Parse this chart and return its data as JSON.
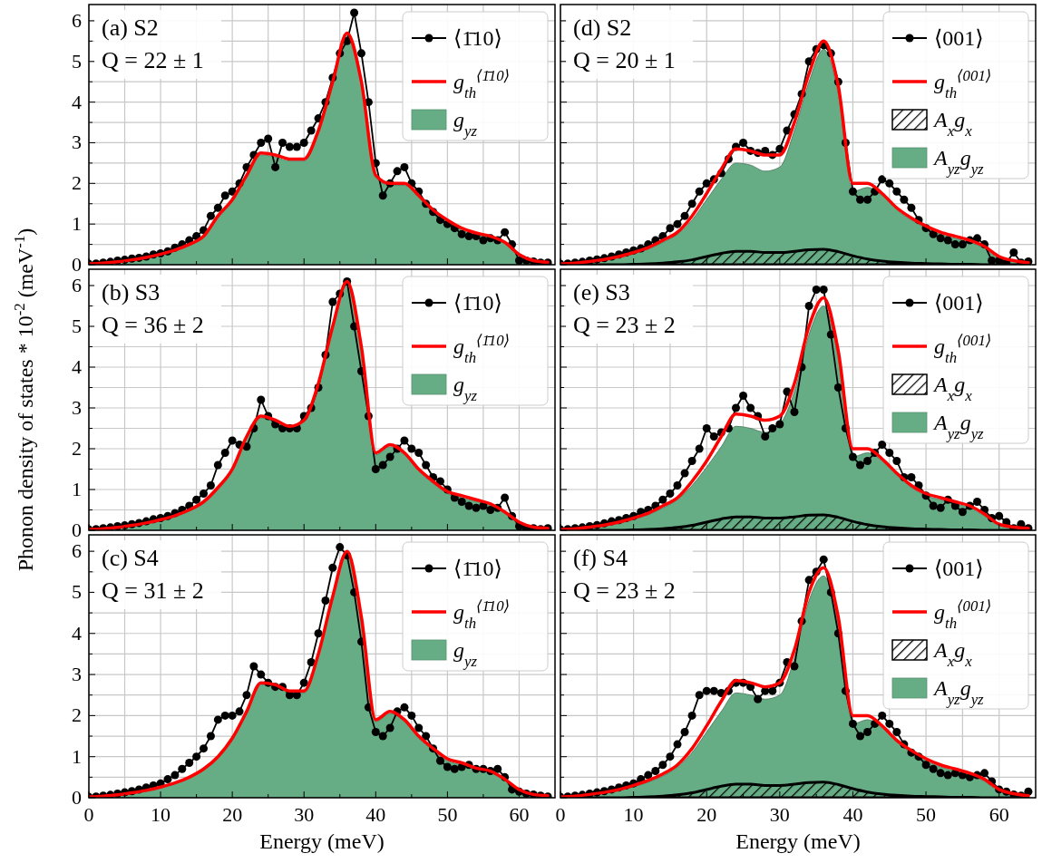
{
  "chart_data": [
    {
      "type": "line",
      "annotations": [
        "(a) S2",
        "Q = 22 ± 1"
      ],
      "tick_labels": "y",
      "xlim": [
        0,
        65
      ],
      "ylim": [
        0,
        6.4
      ],
      "xticks": [
        0,
        {
          "value": 5,
          "label": null
        },
        10,
        {
          "value": 15,
          "label": null
        },
        20,
        {
          "value": 25,
          "label": null
        },
        30,
        {
          "value": 35,
          "label": null
        },
        40,
        {
          "value": 45,
          "label": null
        },
        50,
        {
          "value": 55,
          "label": null
        },
        60
      ],
      "yticks": [
        0,
        {
          "value": 0.5,
          "label": null
        },
        1,
        {
          "value": 1.5,
          "label": null
        },
        2,
        {
          "value": 2.5,
          "label": null
        },
        3,
        {
          "value": 3.5,
          "label": null
        },
        4,
        {
          "value": 4.5,
          "label": null
        },
        5,
        {
          "value": 5.5,
          "label": null
        },
        6
      ],
      "grid": true,
      "legend": "top right",
      "x": [
        0,
        1,
        2,
        3,
        4,
        5,
        6,
        7,
        8,
        9,
        10,
        11,
        12,
        13,
        14,
        15,
        16,
        17,
        18,
        19,
        20,
        21,
        22,
        23,
        24,
        25,
        26,
        27,
        28,
        29,
        30,
        31,
        32,
        33,
        34,
        35,
        36,
        37,
        38,
        39,
        40,
        41,
        42,
        43,
        44,
        45,
        46,
        47,
        48,
        49,
        50,
        51,
        52,
        53,
        54,
        55,
        56,
        57,
        58,
        59,
        60,
        61,
        62,
        63,
        64
      ],
      "series": [
        {
          "name": "⟨1̄10⟩",
          "type": "line",
          "marker": "circle",
          "color": "#000000",
          "values": [
            0.02,
            0.03,
            0.05,
            0.07,
            0.1,
            0.12,
            0.15,
            0.17,
            0.2,
            0.25,
            0.28,
            0.33,
            0.42,
            0.5,
            0.6,
            0.7,
            0.85,
            1.2,
            1.4,
            1.7,
            1.8,
            2.0,
            2.4,
            2.7,
            3.0,
            3.1,
            2.4,
            3.0,
            2.9,
            2.9,
            3.0,
            3.3,
            3.6,
            4.0,
            4.6,
            5.2,
            5.5,
            6.2,
            5.2,
            4.0,
            2.5,
            1.7,
            2.0,
            2.3,
            2.4,
            2.0,
            1.8,
            1.5,
            1.3,
            1.1,
            1.0,
            0.9,
            0.75,
            0.7,
            0.7,
            0.6,
            0.65,
            0.6,
            0.8,
            0.5,
            0.1,
            0.1,
            0.08,
            0.05,
            0.05
          ]
        },
        {
          "name": "g$_{th}$$^{⟨1̄10⟩}$",
          "type": "line",
          "marker": "none",
          "color": "#ff0000",
          "x": [
            0,
            2,
            4,
            6,
            8,
            10,
            12,
            14,
            16,
            18,
            20,
            22,
            24,
            26,
            28,
            30,
            32,
            34,
            36,
            38,
            40,
            42,
            44,
            46,
            48,
            50,
            52,
            54,
            56,
            58,
            60,
            62,
            64
          ],
          "values": [
            0.02,
            0.04,
            0.07,
            0.12,
            0.18,
            0.26,
            0.36,
            0.5,
            0.7,
            1.2,
            1.6,
            2.2,
            2.75,
            2.7,
            2.6,
            2.6,
            3.3,
            4.5,
            5.7,
            4.5,
            2.2,
            2.0,
            2.0,
            1.7,
            1.35,
            1.1,
            0.9,
            0.78,
            0.7,
            0.55,
            0.25,
            0.1,
            0.06
          ]
        },
        {
          "name": "g$_{yz}$",
          "type": "area",
          "color": "#66ad85",
          "x": [
            0,
            2,
            4,
            6,
            8,
            10,
            12,
            14,
            16,
            18,
            20,
            22,
            24,
            26,
            28,
            30,
            32,
            34,
            36,
            38,
            40,
            42,
            44,
            46,
            48,
            50,
            52,
            54,
            56,
            58,
            60,
            62,
            64
          ],
          "values": [
            0.02,
            0.04,
            0.07,
            0.12,
            0.18,
            0.25,
            0.35,
            0.48,
            0.67,
            1.15,
            1.55,
            2.15,
            2.7,
            2.65,
            2.55,
            2.55,
            3.25,
            4.45,
            5.65,
            4.45,
            2.15,
            1.95,
            1.95,
            1.65,
            1.3,
            1.05,
            0.85,
            0.74,
            0.66,
            0.52,
            0.23,
            0.09,
            0.05
          ]
        }
      ]
    },
    {
      "type": "line",
      "annotations": [
        "(b) S3",
        "Q = 36 ± 2"
      ],
      "ylabel": "Phonon  density  of  states * 10$^{-2}$ (meV$^{-1}$)",
      "tick_labels": "y",
      "xlim": [
        0,
        65
      ],
      "ylim": [
        0,
        6.4
      ],
      "xticks": [
        0,
        {
          "value": 5,
          "label": null
        },
        10,
        {
          "value": 15,
          "label": null
        },
        20,
        {
          "value": 25,
          "label": null
        },
        30,
        {
          "value": 35,
          "label": null
        },
        40,
        {
          "value": 45,
          "label": null
        },
        50,
        {
          "value": 55,
          "label": null
        },
        60
      ],
      "yticks": [
        0,
        {
          "value": 0.5,
          "label": null
        },
        1,
        {
          "value": 1.5,
          "label": null
        },
        2,
        {
          "value": 2.5,
          "label": null
        },
        3,
        {
          "value": 3.5,
          "label": null
        },
        4,
        {
          "value": 4.5,
          "label": null
        },
        5,
        {
          "value": 5.5,
          "label": null
        },
        6
      ],
      "grid": true,
      "legend": "top right",
      "x": [
        0,
        1,
        2,
        3,
        4,
        5,
        6,
        7,
        8,
        9,
        10,
        11,
        12,
        13,
        14,
        15,
        16,
        17,
        18,
        19,
        20,
        21,
        22,
        23,
        24,
        25,
        26,
        27,
        28,
        29,
        30,
        31,
        32,
        33,
        34,
        35,
        36,
        37,
        38,
        39,
        40,
        41,
        42,
        43,
        44,
        45,
        46,
        47,
        48,
        49,
        50,
        51,
        52,
        53,
        54,
        55,
        56,
        57,
        58,
        59,
        60,
        61,
        62,
        63,
        64
      ],
      "series": [
        {
          "name": "⟨1̄10⟩",
          "type": "line",
          "marker": "circle",
          "color": "#000000",
          "values": [
            0.02,
            0.03,
            0.05,
            0.07,
            0.1,
            0.12,
            0.15,
            0.18,
            0.22,
            0.27,
            0.3,
            0.35,
            0.42,
            0.5,
            0.6,
            0.75,
            0.9,
            1.1,
            1.6,
            1.9,
            2.2,
            2.1,
            2.05,
            2.5,
            3.2,
            2.8,
            2.6,
            2.5,
            2.5,
            2.5,
            2.8,
            3.0,
            3.5,
            4.3,
            5.6,
            5.8,
            6.1,
            5.0,
            3.9,
            2.8,
            1.5,
            1.6,
            1.8,
            2.0,
            2.2,
            2.0,
            1.9,
            1.6,
            1.3,
            1.2,
            1.0,
            0.8,
            0.7,
            0.6,
            0.55,
            0.6,
            0.5,
            0.55,
            0.8,
            0.35,
            0.1,
            0.05,
            0.05,
            0.03,
            0.05
          ]
        },
        {
          "name": "g$_{th}$$^{⟨1̄10⟩}$",
          "type": "line",
          "marker": "none",
          "color": "#ff0000",
          "x": [
            0,
            2,
            4,
            6,
            8,
            10,
            12,
            14,
            16,
            18,
            20,
            22,
            24,
            26,
            28,
            30,
            32,
            34,
            36,
            38,
            40,
            42,
            44,
            46,
            48,
            50,
            52,
            54,
            56,
            58,
            60,
            62,
            64
          ],
          "values": [
            0.02,
            0.04,
            0.07,
            0.12,
            0.18,
            0.26,
            0.36,
            0.5,
            0.7,
            1.05,
            1.5,
            2.3,
            2.8,
            2.7,
            2.55,
            2.7,
            3.6,
            5.0,
            6.1,
            4.5,
            1.9,
            2.1,
            1.9,
            1.5,
            1.2,
            0.95,
            0.85,
            0.75,
            0.65,
            0.45,
            0.2,
            0.08,
            0.05
          ]
        },
        {
          "name": "g$_{yz}$",
          "type": "area",
          "color": "#66ad85",
          "x": [
            0,
            2,
            4,
            6,
            8,
            10,
            12,
            14,
            16,
            18,
            20,
            22,
            24,
            26,
            28,
            30,
            32,
            34,
            36,
            38,
            40,
            42,
            44,
            46,
            48,
            50,
            52,
            54,
            56,
            58,
            60,
            62,
            64
          ],
          "values": [
            0.02,
            0.04,
            0.07,
            0.12,
            0.18,
            0.25,
            0.35,
            0.48,
            0.67,
            1.0,
            1.45,
            2.25,
            2.75,
            2.65,
            2.5,
            2.65,
            3.55,
            4.95,
            6.05,
            4.45,
            1.85,
            2.05,
            1.85,
            1.45,
            1.15,
            0.9,
            0.8,
            0.71,
            0.61,
            0.42,
            0.18,
            0.07,
            0.04
          ]
        }
      ]
    },
    {
      "type": "line",
      "annotations": [
        "(c) S4",
        "Q = 31 ± 2"
      ],
      "xlabel": "Energy (meV)",
      "xlim": [
        0,
        65
      ],
      "ylim": [
        0,
        6.4
      ],
      "xticks": [
        0,
        {
          "value": 5,
          "label": null
        },
        10,
        {
          "value": 15,
          "label": null
        },
        20,
        {
          "value": 25,
          "label": null
        },
        30,
        {
          "value": 35,
          "label": null
        },
        40,
        {
          "value": 45,
          "label": null
        },
        50,
        {
          "value": 55,
          "label": null
        },
        60
      ],
      "yticks": [
        0,
        {
          "value": 0.5,
          "label": null
        },
        1,
        {
          "value": 1.5,
          "label": null
        },
        2,
        {
          "value": 2.5,
          "label": null
        },
        3,
        {
          "value": 3.5,
          "label": null
        },
        4,
        {
          "value": 4.5,
          "label": null
        },
        5,
        {
          "value": 5.5,
          "label": null
        },
        6
      ],
      "grid": true,
      "legend": "top right",
      "x": [
        0,
        1,
        2,
        3,
        4,
        5,
        6,
        7,
        8,
        9,
        10,
        11,
        12,
        13,
        14,
        15,
        16,
        17,
        18,
        19,
        20,
        21,
        22,
        23,
        24,
        25,
        26,
        27,
        28,
        29,
        30,
        31,
        32,
        33,
        34,
        35,
        36,
        37,
        38,
        39,
        40,
        41,
        42,
        43,
        44,
        45,
        46,
        47,
        48,
        49,
        50,
        51,
        52,
        53,
        54,
        55,
        56,
        57,
        58,
        59,
        60,
        61,
        62,
        63,
        64
      ],
      "series": [
        {
          "name": "⟨1̄10⟩",
          "type": "line",
          "marker": "circle",
          "color": "#000000",
          "values": [
            0.02,
            0.03,
            0.05,
            0.07,
            0.1,
            0.13,
            0.16,
            0.2,
            0.25,
            0.3,
            0.35,
            0.45,
            0.55,
            0.7,
            0.85,
            1.0,
            1.2,
            1.5,
            1.9,
            2.0,
            2.0,
            2.1,
            2.5,
            3.2,
            3.0,
            2.8,
            2.7,
            2.7,
            2.5,
            2.5,
            2.8,
            3.3,
            4.0,
            4.8,
            5.6,
            6.1,
            5.9,
            5.0,
            3.8,
            2.2,
            1.6,
            1.5,
            1.7,
            2.1,
            2.2,
            2.0,
            1.7,
            1.5,
            1.2,
            0.9,
            0.75,
            0.7,
            0.75,
            0.8,
            0.7,
            0.7,
            0.65,
            0.7,
            0.5,
            0.2,
            0.15,
            0.1,
            0.08,
            0.05,
            0.03
          ]
        },
        {
          "name": "g$_{th}$$^{⟨1̄10⟩}$",
          "type": "line",
          "marker": "none",
          "color": "#ff0000",
          "x": [
            0,
            2,
            4,
            6,
            8,
            10,
            12,
            14,
            16,
            18,
            20,
            22,
            24,
            26,
            28,
            30,
            32,
            34,
            36,
            38,
            40,
            42,
            44,
            46,
            48,
            50,
            52,
            54,
            56,
            58,
            60,
            62,
            64
          ],
          "values": [
            0.02,
            0.04,
            0.07,
            0.12,
            0.18,
            0.26,
            0.36,
            0.5,
            0.7,
            1.0,
            1.45,
            2.1,
            2.8,
            2.75,
            2.6,
            2.6,
            3.5,
            4.9,
            6.0,
            4.4,
            1.9,
            2.1,
            1.9,
            1.5,
            1.2,
            0.95,
            0.85,
            0.72,
            0.65,
            0.45,
            0.2,
            0.08,
            0.05
          ]
        },
        {
          "name": "g$_{yz}$",
          "type": "area",
          "color": "#66ad85",
          "x": [
            0,
            2,
            4,
            6,
            8,
            10,
            12,
            14,
            16,
            18,
            20,
            22,
            24,
            26,
            28,
            30,
            32,
            34,
            36,
            38,
            40,
            42,
            44,
            46,
            48,
            50,
            52,
            54,
            56,
            58,
            60,
            62,
            64
          ],
          "values": [
            0.02,
            0.04,
            0.07,
            0.12,
            0.18,
            0.25,
            0.35,
            0.48,
            0.67,
            0.96,
            1.4,
            2.05,
            2.75,
            2.7,
            2.55,
            2.55,
            3.45,
            4.85,
            5.95,
            4.35,
            1.85,
            2.05,
            1.85,
            1.45,
            1.15,
            0.9,
            0.8,
            0.68,
            0.61,
            0.42,
            0.18,
            0.07,
            0.04
          ]
        }
      ]
    },
    {
      "type": "line",
      "annotations": [
        "(d) S2",
        "Q = 20 ± 1"
      ],
      "tick_labels": false,
      "xlim": [
        0,
        65
      ],
      "ylim": [
        0,
        6.4
      ],
      "xticks": [
        0,
        {
          "value": 5,
          "label": null
        },
        10,
        {
          "value": 15,
          "label": null
        },
        20,
        {
          "value": 25,
          "label": null
        },
        30,
        {
          "value": 35,
          "label": null
        },
        40,
        {
          "value": 45,
          "label": null
        },
        50,
        {
          "value": 55,
          "label": null
        },
        60
      ],
      "yticks": [
        0,
        {
          "value": 0.5,
          "label": null
        },
        1,
        {
          "value": 1.5,
          "label": null
        },
        2,
        {
          "value": 2.5,
          "label": null
        },
        3,
        {
          "value": 3.5,
          "label": null
        },
        4,
        {
          "value": 4.5,
          "label": null
        },
        5,
        {
          "value": 5.5,
          "label": null
        },
        6
      ],
      "grid": true,
      "legend": "top right",
      "x": [
        0,
        1,
        2,
        3,
        4,
        5,
        6,
        7,
        8,
        9,
        10,
        11,
        12,
        13,
        14,
        15,
        16,
        17,
        18,
        19,
        20,
        21,
        22,
        23,
        24,
        25,
        26,
        27,
        28,
        29,
        30,
        31,
        32,
        33,
        34,
        35,
        36,
        37,
        38,
        39,
        40,
        41,
        42,
        43,
        44,
        45,
        46,
        47,
        48,
        49,
        50,
        51,
        52,
        53,
        54,
        55,
        56,
        57,
        58,
        59,
        60,
        61,
        62,
        63,
        64
      ],
      "series": [
        {
          "name": "⟨001⟩",
          "type": "line",
          "marker": "circle",
          "color": "#000000",
          "values": [
            0.02,
            0.03,
            0.05,
            0.07,
            0.1,
            0.13,
            0.16,
            0.2,
            0.25,
            0.3,
            0.35,
            0.4,
            0.5,
            0.6,
            0.7,
            0.9,
            1.0,
            1.2,
            1.5,
            1.8,
            2.0,
            2.1,
            2.25,
            2.6,
            2.9,
            3.0,
            2.8,
            2.75,
            2.8,
            2.7,
            2.85,
            3.3,
            3.7,
            4.2,
            5.0,
            5.3,
            5.4,
            5.2,
            4.5,
            3.0,
            1.8,
            1.6,
            1.6,
            1.8,
            2.1,
            2.0,
            1.8,
            1.6,
            1.4,
            1.1,
            0.9,
            0.75,
            0.65,
            0.6,
            0.5,
            0.5,
            0.6,
            0.65,
            0.5,
            0.1,
            0.1,
            0.05,
            0.3,
            0.05,
            0.08
          ]
        },
        {
          "name": "g$_{th}$$^{⟨001⟩}$",
          "type": "line",
          "marker": "none",
          "color": "#ff0000",
          "x": [
            0,
            2,
            4,
            6,
            8,
            10,
            12,
            14,
            16,
            18,
            20,
            22,
            24,
            26,
            28,
            30,
            32,
            34,
            36,
            38,
            40,
            42,
            44,
            46,
            48,
            50,
            52,
            54,
            56,
            58,
            60,
            62,
            64
          ],
          "values": [
            0.02,
            0.04,
            0.08,
            0.13,
            0.2,
            0.3,
            0.42,
            0.6,
            0.8,
            1.2,
            1.75,
            2.35,
            2.85,
            2.8,
            2.7,
            2.7,
            3.5,
            4.7,
            5.5,
            4.4,
            2.0,
            2.0,
            1.75,
            1.4,
            1.15,
            0.95,
            0.8,
            0.7,
            0.6,
            0.45,
            0.2,
            0.1,
            0.05
          ]
        },
        {
          "name": "A$_{x}$g$_{x}$",
          "type": "area",
          "color": "#000000",
          "x": [
            0,
            2,
            4,
            6,
            8,
            10,
            12,
            14,
            16,
            18,
            20,
            22,
            24,
            26,
            28,
            30,
            32,
            34,
            36,
            38,
            40,
            42,
            44,
            46,
            48,
            50,
            52,
            54,
            56,
            58,
            60,
            62,
            64
          ],
          "values": [
            0,
            0,
            0,
            0,
            0,
            0.01,
            0.02,
            0.04,
            0.07,
            0.12,
            0.2,
            0.28,
            0.33,
            0.33,
            0.3,
            0.3,
            0.33,
            0.37,
            0.38,
            0.32,
            0.22,
            0.14,
            0.09,
            0.06,
            0.04,
            0.03,
            0.02,
            0.01,
            0.01,
            0,
            0,
            0,
            0
          ]
        },
        {
          "name": "A$_{yz}$g$_{yz}$",
          "type": "area",
          "color": "#66ad85",
          "x": [
            0,
            2,
            4,
            6,
            8,
            10,
            12,
            14,
            16,
            18,
            20,
            22,
            24,
            26,
            28,
            30,
            32,
            34,
            36,
            38,
            40,
            42,
            44,
            46,
            48,
            50,
            52,
            54,
            56,
            58,
            60,
            62,
            64
          ],
          "values": [
            0.02,
            0.04,
            0.07,
            0.12,
            0.18,
            0.27,
            0.38,
            0.55,
            0.75,
            1.1,
            1.6,
            2.1,
            2.5,
            2.45,
            2.3,
            2.4,
            3.3,
            4.5,
            5.3,
            4.2,
            1.8,
            1.9,
            1.7,
            1.35,
            1.1,
            0.9,
            0.75,
            0.65,
            0.55,
            0.4,
            0.15,
            0.08,
            0.05
          ]
        }
      ]
    },
    {
      "type": "line",
      "annotations": [
        "(e) S3",
        "Q = 23 ± 2"
      ],
      "tick_labels": false,
      "xlim": [
        0,
        65
      ],
      "ylim": [
        0,
        6.4
      ],
      "xticks": [
        0,
        {
          "value": 5,
          "label": null
        },
        10,
        {
          "value": 15,
          "label": null
        },
        20,
        {
          "value": 25,
          "label": null
        },
        30,
        {
          "value": 35,
          "label": null
        },
        40,
        {
          "value": 45,
          "label": null
        },
        50,
        {
          "value": 55,
          "label": null
        },
        60
      ],
      "yticks": [
        0,
        {
          "value": 0.5,
          "label": null
        },
        1,
        {
          "value": 1.5,
          "label": null
        },
        2,
        {
          "value": 2.5,
          "label": null
        },
        3,
        {
          "value": 3.5,
          "label": null
        },
        4,
        {
          "value": 4.5,
          "label": null
        },
        5,
        {
          "value": 5.5,
          "label": null
        },
        6
      ],
      "grid": true,
      "legend": "top right",
      "x": [
        0,
        1,
        2,
        3,
        4,
        5,
        6,
        7,
        8,
        9,
        10,
        11,
        12,
        13,
        14,
        15,
        16,
        17,
        18,
        19,
        20,
        21,
        22,
        23,
        24,
        25,
        26,
        27,
        28,
        29,
        30,
        31,
        32,
        33,
        34,
        35,
        36,
        37,
        38,
        39,
        40,
        41,
        42,
        43,
        44,
        45,
        46,
        47,
        48,
        49,
        50,
        51,
        52,
        53,
        54,
        55,
        56,
        57,
        58,
        59,
        60,
        61,
        62,
        63,
        64
      ],
      "series": [
        {
          "name": "⟨001⟩",
          "type": "line",
          "marker": "circle",
          "color": "#000000",
          "values": [
            0.02,
            0.03,
            0.05,
            0.07,
            0.1,
            0.13,
            0.17,
            0.22,
            0.25,
            0.3,
            0.35,
            0.45,
            0.5,
            0.6,
            0.75,
            0.9,
            1.1,
            1.4,
            1.7,
            2.0,
            2.5,
            2.3,
            2.4,
            2.5,
            3.0,
            3.3,
            3.0,
            2.8,
            2.3,
            2.5,
            2.6,
            3.4,
            2.9,
            4.0,
            5.5,
            5.9,
            5.9,
            4.8,
            3.5,
            2.5,
            1.8,
            1.6,
            1.7,
            1.9,
            2.1,
            1.9,
            1.7,
            1.3,
            1.3,
            1.1,
            0.85,
            0.6,
            0.55,
            0.75,
            0.6,
            0.45,
            0.6,
            0.7,
            0.5,
            0.3,
            0.35,
            0.2,
            0.05,
            0.15,
            0.05
          ]
        },
        {
          "name": "g$_{th}$$^{⟨001⟩}$",
          "type": "line",
          "marker": "none",
          "color": "#ff0000",
          "x": [
            0,
            2,
            4,
            6,
            8,
            10,
            12,
            14,
            16,
            18,
            20,
            22,
            24,
            26,
            28,
            30,
            32,
            34,
            36,
            38,
            40,
            42,
            44,
            46,
            48,
            50,
            52,
            54,
            56,
            58,
            60,
            62,
            64
          ],
          "values": [
            0.02,
            0.04,
            0.08,
            0.13,
            0.2,
            0.3,
            0.42,
            0.6,
            0.8,
            1.2,
            1.7,
            2.3,
            2.85,
            2.8,
            2.7,
            2.8,
            3.6,
            5.0,
            5.7,
            4.4,
            2.0,
            2.0,
            1.75,
            1.4,
            1.1,
            0.9,
            0.8,
            0.7,
            0.6,
            0.4,
            0.15,
            0.08,
            0.05
          ]
        },
        {
          "name": "A$_{x}$g$_{x}$",
          "type": "area",
          "color": "#000000",
          "x": [
            0,
            2,
            4,
            6,
            8,
            10,
            12,
            14,
            16,
            18,
            20,
            22,
            24,
            26,
            28,
            30,
            32,
            34,
            36,
            38,
            40,
            42,
            44,
            46,
            48,
            50,
            52,
            54,
            56,
            58,
            60,
            62,
            64
          ],
          "values": [
            0,
            0,
            0,
            0,
            0,
            0.01,
            0.02,
            0.04,
            0.07,
            0.12,
            0.2,
            0.28,
            0.33,
            0.33,
            0.3,
            0.3,
            0.33,
            0.37,
            0.38,
            0.32,
            0.22,
            0.14,
            0.09,
            0.06,
            0.04,
            0.03,
            0.02,
            0.01,
            0.01,
            0,
            0,
            0,
            0
          ]
        },
        {
          "name": "A$_{yz}$g$_{yz}$",
          "type": "area",
          "color": "#66ad85",
          "x": [
            0,
            2,
            4,
            6,
            8,
            10,
            12,
            14,
            16,
            18,
            20,
            22,
            24,
            26,
            28,
            30,
            32,
            34,
            36,
            38,
            40,
            42,
            44,
            46,
            48,
            50,
            52,
            54,
            56,
            58,
            60,
            62,
            64
          ],
          "values": [
            0.02,
            0.04,
            0.07,
            0.12,
            0.18,
            0.27,
            0.38,
            0.55,
            0.75,
            1.1,
            1.55,
            2.05,
            2.55,
            2.5,
            2.4,
            2.6,
            3.4,
            4.8,
            5.5,
            4.2,
            1.8,
            1.9,
            1.7,
            1.35,
            1.05,
            0.85,
            0.75,
            0.65,
            0.55,
            0.35,
            0.12,
            0.06,
            0.05
          ]
        }
      ]
    },
    {
      "type": "line",
      "annotations": [
        "(f) S4",
        "Q = 23 ± 2"
      ],
      "xlabel": "Energy (meV)",
      "tick_labels": "x",
      "xlim": [
        0,
        65
      ],
      "ylim": [
        0,
        6.4
      ],
      "xticks": [
        0,
        {
          "value": 5,
          "label": null
        },
        10,
        {
          "value": 15,
          "label": null
        },
        20,
        {
          "value": 25,
          "label": null
        },
        30,
        {
          "value": 35,
          "label": null
        },
        40,
        {
          "value": 45,
          "label": null
        },
        50,
        {
          "value": 55,
          "label": null
        },
        60
      ],
      "yticks": [
        0,
        {
          "value": 0.5,
          "label": null
        },
        1,
        {
          "value": 1.5,
          "label": null
        },
        2,
        {
          "value": 2.5,
          "label": null
        },
        3,
        {
          "value": 3.5,
          "label": null
        },
        4,
        {
          "value": 4.5,
          "label": null
        },
        5,
        {
          "value": 5.5,
          "label": null
        },
        6
      ],
      "grid": true,
      "legend": "top right",
      "x": [
        0,
        1,
        2,
        3,
        4,
        5,
        6,
        7,
        8,
        9,
        10,
        11,
        12,
        13,
        14,
        15,
        16,
        17,
        18,
        19,
        20,
        21,
        22,
        23,
        24,
        25,
        26,
        27,
        28,
        29,
        30,
        31,
        32,
        33,
        34,
        35,
        36,
        37,
        38,
        39,
        40,
        41,
        42,
        43,
        44,
        45,
        46,
        47,
        48,
        49,
        50,
        51,
        52,
        53,
        54,
        55,
        56,
        57,
        58,
        59,
        60,
        61,
        62,
        63,
        64
      ],
      "series": [
        {
          "name": "⟨001⟩",
          "type": "line",
          "marker": "circle",
          "color": "#000000",
          "values": [
            0.02,
            0.03,
            0.05,
            0.07,
            0.1,
            0.13,
            0.16,
            0.2,
            0.25,
            0.3,
            0.35,
            0.45,
            0.55,
            0.65,
            0.8,
            1.0,
            1.3,
            1.6,
            2.0,
            2.5,
            2.6,
            2.6,
            2.55,
            2.6,
            2.8,
            2.8,
            2.7,
            2.4,
            2.6,
            2.6,
            2.8,
            3.3,
            3.2,
            4.3,
            5.3,
            5.5,
            5.8,
            5.0,
            4.0,
            2.6,
            1.8,
            1.5,
            1.6,
            1.8,
            2.0,
            1.8,
            1.6,
            1.3,
            1.1,
            1.0,
            0.8,
            0.7,
            0.6,
            0.55,
            0.6,
            0.55,
            0.5,
            0.55,
            0.6,
            0.4,
            0.2,
            0.15,
            0.08,
            0.05,
            0.15
          ]
        },
        {
          "name": "g$_{th}$$^{⟨001⟩}$",
          "type": "line",
          "marker": "none",
          "color": "#ff0000",
          "x": [
            0,
            2,
            4,
            6,
            8,
            10,
            12,
            14,
            16,
            18,
            20,
            22,
            24,
            26,
            28,
            30,
            32,
            34,
            36,
            38,
            40,
            42,
            44,
            46,
            48,
            50,
            52,
            54,
            56,
            58,
            60,
            62,
            64
          ],
          "values": [
            0.02,
            0.04,
            0.08,
            0.13,
            0.2,
            0.3,
            0.42,
            0.58,
            0.8,
            1.2,
            1.75,
            2.35,
            2.85,
            2.8,
            2.7,
            2.8,
            3.6,
            5.0,
            5.6,
            4.4,
            2.0,
            2.0,
            1.75,
            1.4,
            1.15,
            0.95,
            0.8,
            0.7,
            0.6,
            0.45,
            0.2,
            0.1,
            0.05
          ]
        },
        {
          "name": "A$_{x}$g$_{x}$",
          "type": "area",
          "color": "#000000",
          "x": [
            0,
            2,
            4,
            6,
            8,
            10,
            12,
            14,
            16,
            18,
            20,
            22,
            24,
            26,
            28,
            30,
            32,
            34,
            36,
            38,
            40,
            42,
            44,
            46,
            48,
            50,
            52,
            54,
            56,
            58,
            60,
            62,
            64
          ],
          "values": [
            0,
            0,
            0,
            0,
            0,
            0.01,
            0.02,
            0.04,
            0.07,
            0.12,
            0.2,
            0.28,
            0.33,
            0.33,
            0.3,
            0.3,
            0.33,
            0.37,
            0.38,
            0.32,
            0.22,
            0.14,
            0.09,
            0.06,
            0.04,
            0.03,
            0.02,
            0.01,
            0.01,
            0,
            0,
            0,
            0
          ]
        },
        {
          "name": "A$_{yz}$g$_{yz}$",
          "type": "area",
          "color": "#66ad85",
          "x": [
            0,
            2,
            4,
            6,
            8,
            10,
            12,
            14,
            16,
            18,
            20,
            22,
            24,
            26,
            28,
            30,
            32,
            34,
            36,
            38,
            40,
            42,
            44,
            46,
            48,
            50,
            52,
            54,
            56,
            58,
            60,
            62,
            64
          ],
          "values": [
            0.02,
            0.04,
            0.07,
            0.12,
            0.18,
            0.27,
            0.38,
            0.53,
            0.75,
            1.1,
            1.6,
            2.1,
            2.55,
            2.5,
            2.4,
            2.5,
            3.4,
            4.8,
            5.4,
            4.2,
            1.8,
            1.9,
            1.7,
            1.35,
            1.1,
            0.9,
            0.75,
            0.65,
            0.55,
            0.4,
            0.15,
            0.08,
            0.05
          ]
        }
      ]
    }
  ]
}
